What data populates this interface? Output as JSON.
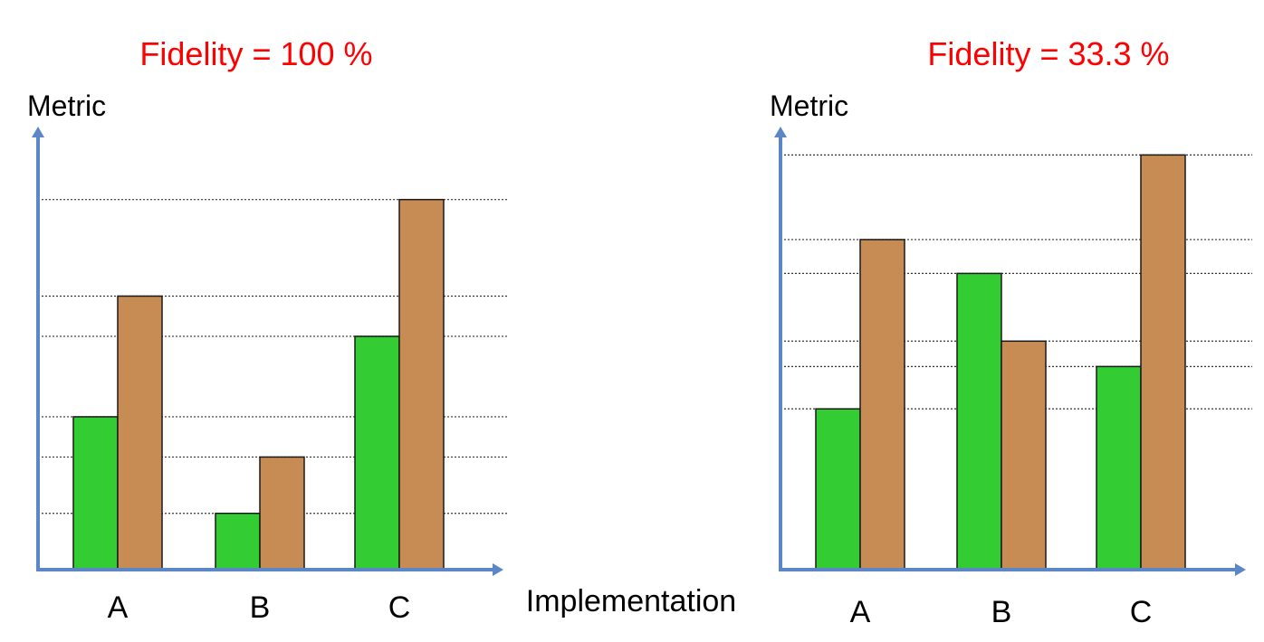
{
  "colors": {
    "title": "#ff0000",
    "axis": "#5b87c7",
    "gridline": "#333333",
    "bar_green": "#33cc33",
    "bar_brown": "#c68c53",
    "bar_outline": "#1a1a1a",
    "text": "#000000"
  },
  "shared_xlabel": "Implementation",
  "chart_data": [
    {
      "type": "bar",
      "title": "Fidelity = 100 %",
      "ylabel": "Metric",
      "xlabel": "",
      "categories": [
        "A",
        "B",
        "C"
      ],
      "series": [
        {
          "values": [
            1.9,
            0.7,
            2.9
          ]
        },
        {
          "values": [
            3.4,
            1.4,
            4.6
          ]
        }
      ],
      "ylim": [
        0,
        4.9
      ],
      "grid": "dotted horizontal lines at bar tops"
    },
    {
      "type": "bar",
      "title": "Fidelity = 33.3 %",
      "ylabel": "Metric",
      "xlabel": "",
      "categories": [
        "A",
        "B",
        "C"
      ],
      "series": [
        {
          "values": [
            1.9,
            3.5,
            2.4
          ]
        },
        {
          "values": [
            3.9,
            2.7,
            4.9
          ]
        }
      ],
      "ylim": [
        0,
        5.0
      ],
      "grid": "dotted horizontal lines at bar tops"
    }
  ]
}
